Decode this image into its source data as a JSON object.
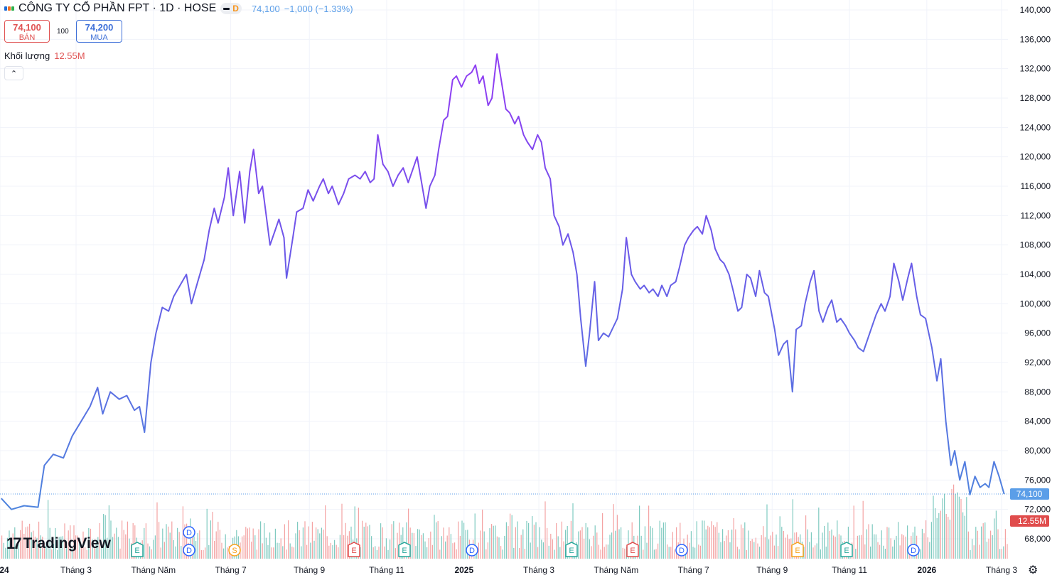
{
  "header": {
    "title": "CÔNG TY CỔ PHẦN FPT · 1D · HOSE",
    "interval_badge": "D",
    "last": "74,100",
    "change": "−1,000 (−1.33%)"
  },
  "trade": {
    "sell_price": "74,100",
    "sell_label": "BÁN",
    "spread": "100",
    "buy_price": "74,200",
    "buy_label": "MUA"
  },
  "volume": {
    "label": "Khối lượng",
    "value": "12.55M"
  },
  "brand": {
    "name": "TradingView"
  },
  "colors": {
    "line_purple": "#8e3ff2",
    "line_blue": "#4c86dd",
    "vol_up": "#7fcac0",
    "vol_down": "#f4a3a3",
    "sell": "#e05252",
    "buy": "#3d6fd8",
    "label_blue": "#5b9ee8",
    "label_red": "#e04c4c"
  },
  "icons": {
    "settings": "gear-icon",
    "collapse": "chevron-up-icon"
  },
  "chart_data": {
    "type": "line",
    "y_axis": {
      "ticks": [
        "140,000",
        "136,000",
        "132,000",
        "128,000",
        "124,000",
        "120,000",
        "116,000",
        "112,000",
        "108,000",
        "104,000",
        "100,000",
        "96,000",
        "92,000",
        "88,000",
        "84,000",
        "80,000",
        "76,000",
        "72,000",
        "68,000"
      ],
      "range": [
        66000,
        142000
      ],
      "last_price_label": "74,100",
      "volume_label": "12.55M"
    },
    "x_axis": {
      "labels": [
        {
          "text": "24",
          "date": "2024-01",
          "bold": true
        },
        {
          "text": "Tháng 3",
          "date": "2024-03"
        },
        {
          "text": "Tháng Năm",
          "date": "2024-05"
        },
        {
          "text": "Tháng 7",
          "date": "2024-07"
        },
        {
          "text": "Tháng 9",
          "date": "2024-09"
        },
        {
          "text": "Tháng 11",
          "date": "2024-11"
        },
        {
          "text": "2025",
          "date": "2025-01",
          "bold": true
        },
        {
          "text": "Tháng 3",
          "date": "2025-03"
        },
        {
          "text": "Tháng Năm",
          "date": "2025-05"
        },
        {
          "text": "Tháng 7",
          "date": "2025-07"
        },
        {
          "text": "Tháng 9",
          "date": "2025-09"
        },
        {
          "text": "Tháng 11",
          "date": "2025-11"
        },
        {
          "text": "2026",
          "date": "2026-01",
          "bold": true
        },
        {
          "text": "Tháng 3",
          "date": "2026-03"
        }
      ]
    },
    "series": [
      {
        "points": [
          [
            "2024-01-02",
            73500
          ],
          [
            "2024-01-10",
            72000
          ],
          [
            "2024-01-20",
            72500
          ],
          [
            "2024-01-31",
            72300
          ],
          [
            "2024-02-05",
            78000
          ],
          [
            "2024-02-12",
            79500
          ],
          [
            "2024-02-20",
            79000
          ],
          [
            "2024-02-27",
            82000
          ],
          [
            "2024-03-05",
            84000
          ],
          [
            "2024-03-12",
            86000
          ],
          [
            "2024-03-18",
            88600
          ],
          [
            "2024-03-22",
            85000
          ],
          [
            "2024-03-28",
            88000
          ],
          [
            "2024-04-04",
            87000
          ],
          [
            "2024-04-10",
            87500
          ],
          [
            "2024-04-16",
            85500
          ],
          [
            "2024-04-20",
            86000
          ],
          [
            "2024-04-24",
            82500
          ],
          [
            "2024-04-29",
            92000
          ],
          [
            "2024-05-03",
            96000
          ],
          [
            "2024-05-08",
            99500
          ],
          [
            "2024-05-13",
            99000
          ],
          [
            "2024-05-17",
            101000
          ],
          [
            "2024-05-22",
            102500
          ],
          [
            "2024-05-27",
            104000
          ],
          [
            "2024-05-31",
            100000
          ],
          [
            "2024-06-05",
            103000
          ],
          [
            "2024-06-10",
            106000
          ],
          [
            "2024-06-14",
            110000
          ],
          [
            "2024-06-18",
            113000
          ],
          [
            "2024-06-21",
            111000
          ],
          [
            "2024-06-26",
            114500
          ],
          [
            "2024-06-29",
            118500
          ],
          [
            "2024-07-03",
            112000
          ],
          [
            "2024-07-08",
            118000
          ],
          [
            "2024-07-12",
            111000
          ],
          [
            "2024-07-16",
            118000
          ],
          [
            "2024-07-19",
            121000
          ],
          [
            "2024-07-23",
            115000
          ],
          [
            "2024-07-26",
            116000
          ],
          [
            "2024-08-01",
            108000
          ],
          [
            "2024-08-05",
            110000
          ],
          [
            "2024-08-08",
            111500
          ],
          [
            "2024-08-12",
            109000
          ],
          [
            "2024-08-14",
            103500
          ],
          [
            "2024-08-19",
            109000
          ],
          [
            "2024-08-22",
            112500
          ],
          [
            "2024-08-27",
            113000
          ],
          [
            "2024-08-31",
            115500
          ],
          [
            "2024-09-04",
            114000
          ],
          [
            "2024-09-09",
            116000
          ],
          [
            "2024-09-12",
            117000
          ],
          [
            "2024-09-16",
            115000
          ],
          [
            "2024-09-19",
            116000
          ],
          [
            "2024-09-24",
            113500
          ],
          [
            "2024-09-28",
            115000
          ],
          [
            "2024-10-02",
            117000
          ],
          [
            "2024-10-07",
            117500
          ],
          [
            "2024-10-11",
            117000
          ],
          [
            "2024-10-15",
            118000
          ],
          [
            "2024-10-19",
            116500
          ],
          [
            "2024-10-22",
            117000
          ],
          [
            "2024-10-25",
            123000
          ],
          [
            "2024-10-29",
            119000
          ],
          [
            "2024-11-02",
            118000
          ],
          [
            "2024-11-06",
            116000
          ],
          [
            "2024-11-10",
            117500
          ],
          [
            "2024-11-14",
            118500
          ],
          [
            "2024-11-18",
            116500
          ],
          [
            "2024-11-21",
            118000
          ],
          [
            "2024-11-25",
            120000
          ],
          [
            "2024-11-28",
            117000
          ],
          [
            "2024-12-02",
            113000
          ],
          [
            "2024-12-05",
            116000
          ],
          [
            "2024-12-09",
            117500
          ],
          [
            "2024-12-12",
            121000
          ],
          [
            "2024-12-16",
            125000
          ],
          [
            "2024-12-19",
            125500
          ],
          [
            "2024-12-23",
            130500
          ],
          [
            "2024-12-26",
            131000
          ],
          [
            "2024-12-30",
            129500
          ],
          [
            "2025-01-03",
            131000
          ],
          [
            "2025-01-07",
            131500
          ],
          [
            "2025-01-10",
            132500
          ],
          [
            "2025-01-13",
            130000
          ],
          [
            "2025-01-16",
            131000
          ],
          [
            "2025-01-20",
            127000
          ],
          [
            "2025-01-23",
            128000
          ],
          [
            "2025-01-27",
            134000
          ],
          [
            "2025-02-03",
            126500
          ],
          [
            "2025-02-06",
            126000
          ],
          [
            "2025-02-10",
            124500
          ],
          [
            "2025-02-13",
            125500
          ],
          [
            "2025-02-17",
            123000
          ],
          [
            "2025-02-20",
            122000
          ],
          [
            "2025-02-24",
            121000
          ],
          [
            "2025-02-28",
            123000
          ],
          [
            "2025-03-03",
            122000
          ],
          [
            "2025-03-06",
            118500
          ],
          [
            "2025-03-10",
            117000
          ],
          [
            "2025-03-13",
            112000
          ],
          [
            "2025-03-17",
            110500
          ],
          [
            "2025-03-20",
            108000
          ],
          [
            "2025-03-24",
            109500
          ],
          [
            "2025-03-28",
            107000
          ],
          [
            "2025-03-31",
            104000
          ],
          [
            "2025-04-03",
            98000
          ],
          [
            "2025-04-07",
            91500
          ],
          [
            "2025-04-10",
            96000
          ],
          [
            "2025-04-14",
            103000
          ],
          [
            "2025-04-17",
            95000
          ],
          [
            "2025-04-21",
            96000
          ],
          [
            "2025-04-25",
            95500
          ],
          [
            "2025-05-02",
            98000
          ],
          [
            "2025-05-06",
            102000
          ],
          [
            "2025-05-09",
            109000
          ],
          [
            "2025-05-13",
            104000
          ],
          [
            "2025-05-16",
            103000
          ],
          [
            "2025-05-20",
            102000
          ],
          [
            "2025-05-23",
            102500
          ],
          [
            "2025-05-27",
            101500
          ],
          [
            "2025-05-30",
            102000
          ],
          [
            "2025-06-03",
            101000
          ],
          [
            "2025-06-06",
            102500
          ],
          [
            "2025-06-10",
            101000
          ],
          [
            "2025-06-13",
            102500
          ],
          [
            "2025-06-17",
            103000
          ],
          [
            "2025-06-20",
            105000
          ],
          [
            "2025-06-24",
            108000
          ],
          [
            "2025-06-27",
            109000
          ],
          [
            "2025-07-01",
            110000
          ],
          [
            "2025-07-04",
            110500
          ],
          [
            "2025-07-08",
            109500
          ],
          [
            "2025-07-11",
            112000
          ],
          [
            "2025-07-15",
            110000
          ],
          [
            "2025-07-18",
            107500
          ],
          [
            "2025-07-22",
            106000
          ],
          [
            "2025-07-25",
            105500
          ],
          [
            "2025-07-29",
            104000
          ],
          [
            "2025-08-01",
            102000
          ],
          [
            "2025-08-05",
            99000
          ],
          [
            "2025-08-08",
            99500
          ],
          [
            "2025-08-12",
            104000
          ],
          [
            "2025-08-15",
            103500
          ],
          [
            "2025-08-19",
            101000
          ],
          [
            "2025-08-22",
            104500
          ],
          [
            "2025-08-26",
            101500
          ],
          [
            "2025-08-29",
            101000
          ],
          [
            "2025-09-03",
            96500
          ],
          [
            "2025-09-06",
            93000
          ],
          [
            "2025-09-10",
            94500
          ],
          [
            "2025-09-13",
            95000
          ],
          [
            "2025-09-17",
            88000
          ],
          [
            "2025-09-20",
            96500
          ],
          [
            "2025-09-24",
            97000
          ],
          [
            "2025-09-27",
            100000
          ],
          [
            "2025-10-01",
            103000
          ],
          [
            "2025-10-04",
            104500
          ],
          [
            "2025-10-08",
            99000
          ],
          [
            "2025-10-11",
            97500
          ],
          [
            "2025-10-15",
            99500
          ],
          [
            "2025-10-18",
            100500
          ],
          [
            "2025-10-22",
            97500
          ],
          [
            "2025-10-25",
            98000
          ],
          [
            "2025-10-29",
            97000
          ],
          [
            "2025-11-01",
            96000
          ],
          [
            "2025-11-05",
            95000
          ],
          [
            "2025-11-08",
            94000
          ],
          [
            "2025-11-12",
            93500
          ],
          [
            "2025-11-15",
            95000
          ],
          [
            "2025-11-19",
            97000
          ],
          [
            "2025-11-22",
            98500
          ],
          [
            "2025-11-26",
            100000
          ],
          [
            "2025-11-29",
            99000
          ],
          [
            "2025-12-03",
            101000
          ],
          [
            "2025-12-06",
            105500
          ],
          [
            "2025-12-10",
            103000
          ],
          [
            "2025-12-13",
            100500
          ],
          [
            "2025-12-17",
            103500
          ],
          [
            "2025-12-20",
            105500
          ],
          [
            "2025-12-24",
            101000
          ],
          [
            "2025-12-27",
            98500
          ],
          [
            "2025-12-31",
            98000
          ],
          [
            "2026-01-05",
            94000
          ],
          [
            "2026-01-09",
            89500
          ],
          [
            "2026-01-12",
            92500
          ],
          [
            "2026-01-16",
            84000
          ],
          [
            "2026-01-20",
            78000
          ],
          [
            "2026-01-23",
            80000
          ],
          [
            "2026-01-27",
            76000
          ],
          [
            "2026-01-31",
            78500
          ],
          [
            "2026-02-04",
            74000
          ],
          [
            "2026-02-08",
            76500
          ],
          [
            "2026-02-12",
            75000
          ],
          [
            "2026-02-16",
            75500
          ],
          [
            "2026-02-19",
            75000
          ],
          [
            "2026-02-23",
            78500
          ],
          [
            "2026-02-27",
            76500
          ],
          [
            "2026-03-03",
            74100
          ]
        ]
      }
    ],
    "event_markers": [
      {
        "label": "E",
        "color": "#26a69a"
      },
      {
        "label": "D",
        "color": "#2962ff"
      },
      {
        "label": "S",
        "color": "#f7a21b"
      },
      {
        "label": "E",
        "color": "#e04c4c"
      },
      {
        "label": "E",
        "color": "#26a69a"
      },
      {
        "label": "D",
        "color": "#2962ff"
      },
      {
        "label": "E",
        "color": "#26a69a"
      },
      {
        "label": "E",
        "color": "#e04c4c"
      },
      {
        "label": "D",
        "color": "#2962ff"
      },
      {
        "label": "E",
        "color": "#f7a21b"
      },
      {
        "label": "E",
        "color": "#26a69a"
      },
      {
        "label": "D",
        "color": "#2962ff"
      },
      {
        "label": "E",
        "color": "#26a69a"
      }
    ]
  }
}
